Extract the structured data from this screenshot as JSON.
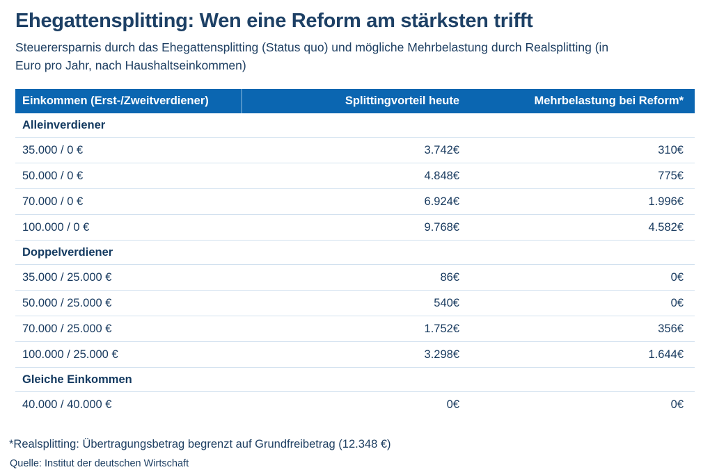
{
  "chart_data": {
    "type": "table",
    "title": "Ehegattensplitting: Wen eine Reform am stärksten trifft",
    "subtitle": "Steuerersparnis durch das Ehegattensplitting (Status quo) und mögliche Mehrbelastung durch Realsplitting (in\nEuro pro Jahr, nach Haushaltseinkommen)",
    "columns": [
      "Einkommen (Erst-/Zweitverdiener)",
      "Splittingvorteil heute",
      "Mehrbelastung bei Reform*"
    ],
    "sections": [
      {
        "label": "Alleinverdiener",
        "rows": [
          [
            "35.000 / 0 €",
            "3.742€",
            "310€"
          ],
          [
            "50.000 / 0 €",
            "4.848€",
            "775€"
          ],
          [
            "70.000 / 0 €",
            "6.924€",
            "1.996€"
          ],
          [
            "100.000 / 0 €",
            "9.768€",
            "4.582€"
          ]
        ]
      },
      {
        "label": "Doppelverdiener",
        "rows": [
          [
            "35.000 / 25.000 €",
            "86€",
            "0€"
          ],
          [
            "50.000 / 25.000 €",
            "540€",
            "0€"
          ],
          [
            "70.000 / 25.000 €",
            "1.752€",
            "356€"
          ],
          [
            "100.000 / 25.000 €",
            "3.298€",
            "1.644€"
          ]
        ]
      },
      {
        "label": "Gleiche Einkommen",
        "rows": [
          [
            "40.000 / 40.000 €",
            "0€",
            "0€"
          ]
        ]
      }
    ],
    "footnote": "*Realsplitting: Übertragungsbetrag begrenzt auf Grundfreibetrag (12.348 €)",
    "source": "Quelle: Institut der deutschen Wirtschaft",
    "layout_hints": {
      "grid": "horizontal row separators only",
      "value_alignment": "right",
      "header_style": "solid blue bar with white bold text"
    },
    "colors": {
      "header_bg": "#0b66b1",
      "header_divider": "#4e92c8",
      "text_navy": "#17395e",
      "title_navy": "#1d4065",
      "row_border": "#d2e1ef",
      "background": "#ffffff"
    }
  }
}
